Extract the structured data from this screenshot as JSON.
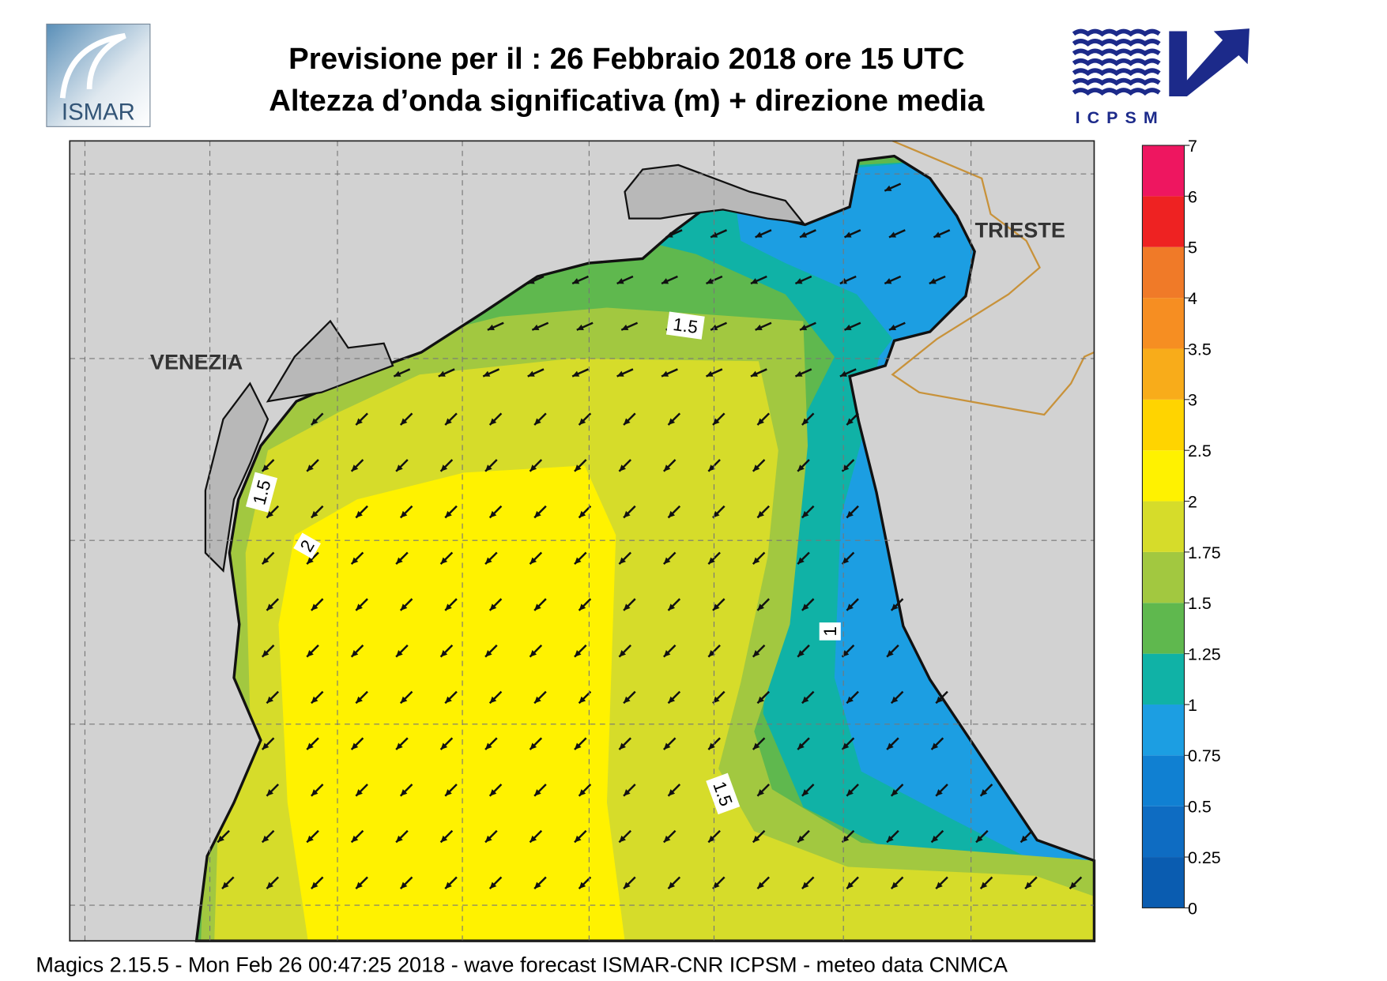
{
  "header": {
    "title": "Previsione per il  :  26  Febbraio 2018   ore 15 UTC",
    "subtitle": "Altezza d’onda significativa (m) + direzione media",
    "left_logo": "ISMAR",
    "right_logo": "ICPSM"
  },
  "map": {
    "places": [
      "VENEZIA",
      "TRIESTE"
    ],
    "contour_labels": [
      "1.5",
      "1.5",
      "2",
      "1",
      "1.5"
    ]
  },
  "colorbar": {
    "levels": [
      0,
      0.25,
      0.5,
      0.75,
      1,
      1.25,
      1.5,
      1.75,
      2,
      2.5,
      3,
      3.5,
      4,
      5,
      6,
      7
    ],
    "colors": [
      "#0a5cb0",
      "#0e6cc2",
      "#1080d2",
      "#1c9ee2",
      "#10b2a6",
      "#5fb84e",
      "#a2c840",
      "#d6dc2a",
      "#fff200",
      "#ffd400",
      "#f8ac1a",
      "#f68e22",
      "#f07a28",
      "#ee2222",
      "#ee1660"
    ]
  },
  "footer": "Magics 2.15.5 - Mon Feb 26 00:47:25 2018 - wave forecast  ISMAR-CNR  ICPSM - meteo data   CNMCA"
}
